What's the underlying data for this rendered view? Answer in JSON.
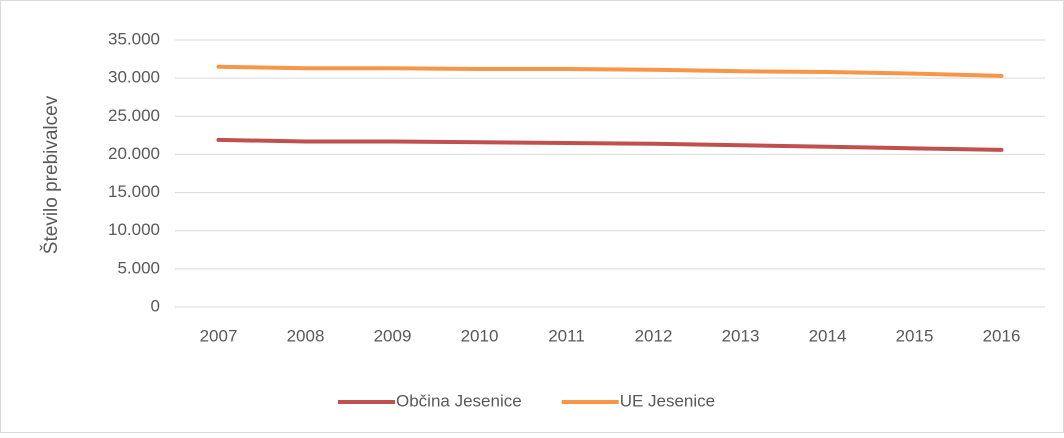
{
  "chart_data": {
    "type": "line",
    "y_label": "Število prebivalcev",
    "categories": [
      "2007",
      "2008",
      "2009",
      "2010",
      "2011",
      "2012",
      "2013",
      "2014",
      "2015",
      "2016"
    ],
    "series": [
      {
        "name": "Občina Jesenice",
        "color": "#c0504d",
        "values": [
          21900,
          21700,
          21700,
          21600,
          21500,
          21400,
          21200,
          21000,
          20800,
          20600
        ]
      },
      {
        "name": "UE Jesenice",
        "color": "#f79646",
        "values": [
          31500,
          31300,
          31300,
          31200,
          31200,
          31100,
          30900,
          30800,
          30600,
          30300
        ]
      }
    ],
    "ylim": [
      0,
      35000
    ],
    "yticks": [
      0,
      {
        "value": 5000,
        "label": "5.000"
      },
      {
        "value": 10000,
        "label": "10.000"
      },
      {
        "value": 15000,
        "label": "15.000"
      },
      {
        "value": 20000,
        "label": "20.000"
      },
      {
        "value": 25000,
        "label": "25.000"
      },
      {
        "value": 30000,
        "label": "30.000"
      },
      {
        "value": 35000,
        "label": "35.000"
      }
    ],
    "grid": true,
    "legend": "bottom"
  }
}
